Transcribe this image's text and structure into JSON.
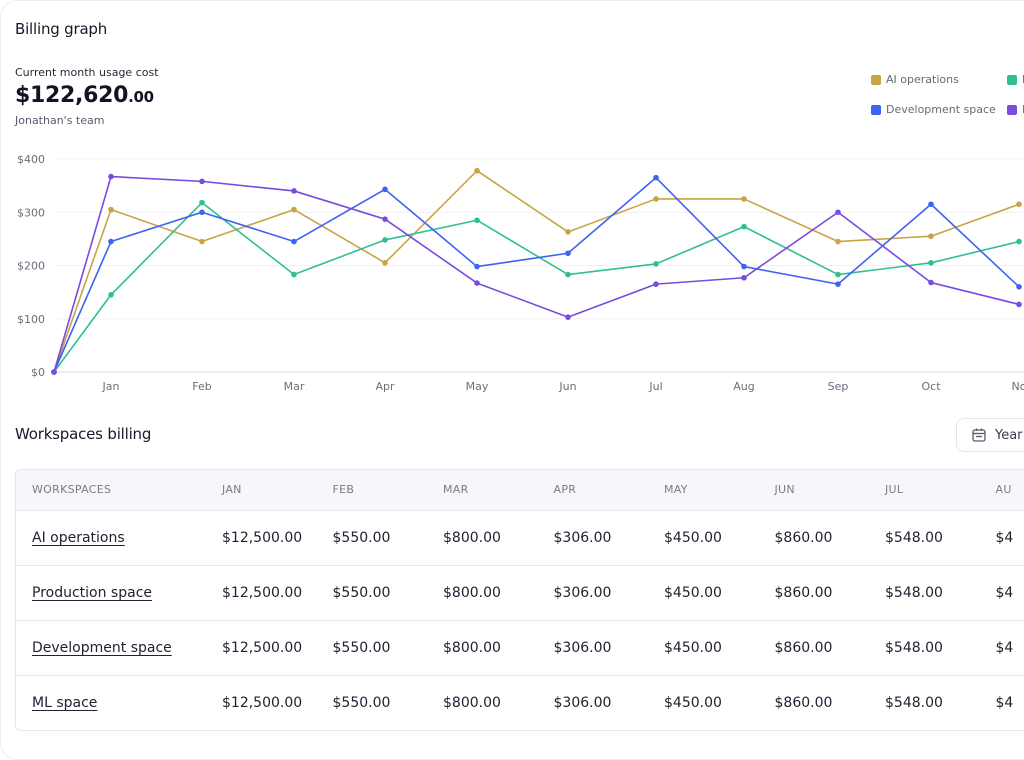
{
  "billing": {
    "title": "Billing graph",
    "usage_label": "Current month usage cost",
    "amount_main": "$122,620",
    "amount_cents": ".00",
    "team": "Jonathan's team"
  },
  "legend": [
    {
      "label": "AI operations",
      "color": "#c9a445"
    },
    {
      "label": "P",
      "color": "#2fbf93"
    },
    {
      "label": "Development space",
      "color": "#3e63f2"
    },
    {
      "label": "M",
      "color": "#7a4be0"
    }
  ],
  "chart_data": {
    "type": "line",
    "categories": [
      "",
      "Jan",
      "Feb",
      "Mar",
      "Apr",
      "May",
      "Jun",
      "Jul",
      "Aug",
      "Sep",
      "Oct",
      "No"
    ],
    "y_ticks": [
      "$0",
      "$100",
      "$200",
      "$300",
      "$400"
    ],
    "ylim": [
      0,
      400
    ],
    "grid": true,
    "legend_position": "top-right",
    "series": [
      {
        "name": "AI operations",
        "color": "#c9a445",
        "values": [
          0,
          305,
          245,
          305,
          205,
          378,
          263,
          325,
          325,
          245,
          255,
          315
        ]
      },
      {
        "name": "P",
        "color": "#2fbf93",
        "values": [
          0,
          145,
          318,
          183,
          248,
          285,
          183,
          203,
          273,
          183,
          205,
          245
        ]
      },
      {
        "name": "Development space",
        "color": "#3e63f2",
        "values": [
          0,
          245,
          300,
          245,
          343,
          198,
          223,
          365,
          198,
          165,
          315,
          160
        ]
      },
      {
        "name": "M",
        "color": "#7a4be0",
        "values": [
          0,
          367,
          358,
          340,
          287,
          167,
          103,
          165,
          177,
          300,
          168,
          127
        ]
      }
    ]
  },
  "workspaces": {
    "title": "Workspaces billing",
    "filter_label": "Year",
    "columns": [
      "WORKSPACES",
      "JAN",
      "FEB",
      "MAR",
      "APR",
      "MAY",
      "JUN",
      "JUL",
      "AU"
    ],
    "rows": [
      {
        "name": "AI operations",
        "values": [
          "$12,500.00",
          "$550.00",
          "$800.00",
          "$306.00",
          "$450.00",
          "$860.00",
          "$548.00",
          "$4"
        ]
      },
      {
        "name": "Production space",
        "values": [
          "$12,500.00",
          "$550.00",
          "$800.00",
          "$306.00",
          "$450.00",
          "$860.00",
          "$548.00",
          "$4"
        ]
      },
      {
        "name": "Development space",
        "values": [
          "$12,500.00",
          "$550.00",
          "$800.00",
          "$306.00",
          "$450.00",
          "$860.00",
          "$548.00",
          "$4"
        ]
      },
      {
        "name": "ML space",
        "values": [
          "$12,500.00",
          "$550.00",
          "$800.00",
          "$306.00",
          "$450.00",
          "$860.00",
          "$548.00",
          "$4"
        ]
      }
    ]
  }
}
